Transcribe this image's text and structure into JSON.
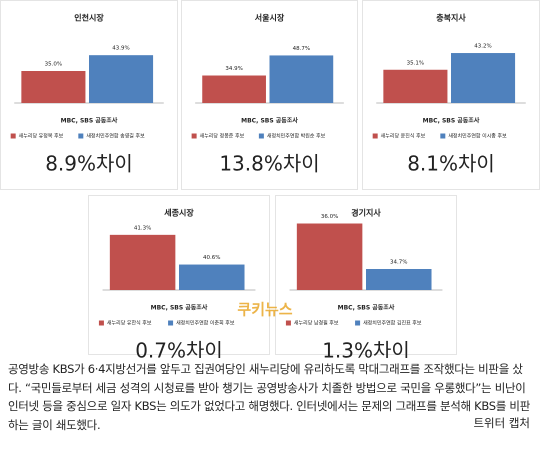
{
  "chart_data": [
    {
      "type": "bar",
      "title": "인천시장",
      "subtitle": "MBC, SBS 공동조사",
      "categories": [
        "새누리당 유정복 후보",
        "새정치민주연합 송영길 후보"
      ],
      "values": [
        35.0,
        43.9
      ],
      "value_labels": [
        "35.0%",
        "43.9%"
      ],
      "colors": [
        "#c0504d",
        "#4f81bd"
      ],
      "ylim": [
        17,
        53
      ],
      "difference": "8.9%차이"
    },
    {
      "type": "bar",
      "title": "서울시장",
      "subtitle": "MBC, SBS 공동조사",
      "categories": [
        "새누리당 정몽준 후보",
        "새정치민주연합 박원순 후보"
      ],
      "values": [
        34.9,
        48.7
      ],
      "value_labels": [
        "34.9%",
        "48.7%"
      ],
      "colors": [
        "#c0504d",
        "#4f81bd"
      ],
      "ylim": [
        16,
        60
      ],
      "difference": "13.8%차이"
    },
    {
      "type": "bar",
      "title": "충북지사",
      "subtitle": "MBC, SBS 공동조사",
      "categories": [
        "새누리당 윤진식 후보",
        "새정치민주연합 이시종 후보"
      ],
      "values": [
        35.1,
        43.2
      ],
      "value_labels": [
        "35.1%",
        "43.2%"
      ],
      "colors": [
        "#c0504d",
        "#4f81bd"
      ],
      "ylim": [
        19,
        50
      ],
      "difference": "8.1%차이"
    },
    {
      "type": "bar",
      "title": "세종시장",
      "subtitle": "MBC, SBS 공동조사",
      "categories": [
        "새누리당 유한식 후보",
        "새정치민주연합 이춘희 후보"
      ],
      "values": [
        41.3,
        40.6
      ],
      "value_labels": [
        "41.3%",
        "40.6%"
      ],
      "colors": [
        "#c0504d",
        "#4f81bd"
      ],
      "ylim": [
        40,
        41.65
      ],
      "difference": "0.7%차이"
    },
    {
      "type": "bar",
      "title": "경기지사",
      "subtitle": "MBC, SBS 공동조사",
      "categories": [
        "새누리당 남경필 후보",
        "새정치민주연합 김진표 후보"
      ],
      "values": [
        36.0,
        34.7
      ],
      "value_labels": [
        "36.0%",
        "34.7%"
      ],
      "colors": [
        "#c0504d",
        "#4f81bd"
      ],
      "ylim": [
        34.1,
        36.1
      ],
      "difference": "1.3%차이"
    }
  ],
  "watermark": "쿠키뉴스",
  "caption": {
    "text": "공영방송 KBS가 6·4지방선거를 앞두고 집권여당인 새누리당에 유리하도록 막대그래프를 조작했다는 비판을 샀다. “국민들로부터 세금 성격의 시청료를 받아 챙기는 공영방송사가 치졸한 방법으로 국민을 우롱했다”는 비난이 인터넷 등을 중심으로 일자 KBS는 의도가 없었다고 해명했다. 인터넷에서는 문제의 그래프를 분석해 KBS를 비판하는 글이 쇄도했다.",
    "credit": "트위터 캡처"
  }
}
